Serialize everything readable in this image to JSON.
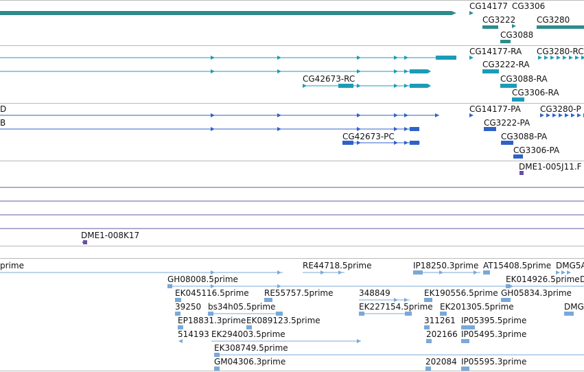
{
  "colors": {
    "gene": "#2e8b8b",
    "transcript": "#1a9cb8",
    "protein": "#2f62c8",
    "clone": "#6a4ea8",
    "clone_line": "#6a55a0",
    "est": "#7aa9d8",
    "separator": "#b9b9b9"
  },
  "tracks": {
    "genes": {
      "labels": [
        "CG14177",
        "CG3306",
        "CG3222",
        "CG3280",
        "CG3088"
      ]
    },
    "transcripts": {
      "labels": [
        "CG14177-RA",
        "CG3280-RC",
        "CG3222-RA",
        "CG42673-RC",
        "CG3088-RA",
        "CG3306-RA"
      ]
    },
    "proteins": {
      "labels": [
        "D",
        "CG14177-PA",
        "CG3280-P",
        "B",
        "CG3222-PA",
        "CG42673-PC",
        "CG3088-PA",
        "CG3306-PA"
      ]
    },
    "clones": {
      "labels": [
        "DME1-005J11.F",
        "DME1-008K17"
      ]
    },
    "ests": {
      "labels": [
        "prime",
        "RE44718.5prime",
        "IP18250.3prime",
        "AT15408.5prime",
        "DMG5A",
        "GH08008.5prime",
        "EK014926.5prime",
        "D",
        "EK045116.5prime",
        "RE55757.5prime",
        "348849",
        "EK190556.5prime",
        "GH05834.3prime",
        "39250",
        "bs34h05.5prime",
        "EK227154.5prime",
        "EK201305.5prime",
        "DMG",
        "EP18831.3prime",
        "EK089123.5prime",
        "311261",
        "IP05395.5prime",
        "514193",
        "EK294003.5prime",
        "202166",
        "IP05495.3prime",
        "EK308749.5prime",
        "GM04306.3prime",
        "202084",
        "IP05595.3prime"
      ]
    }
  }
}
